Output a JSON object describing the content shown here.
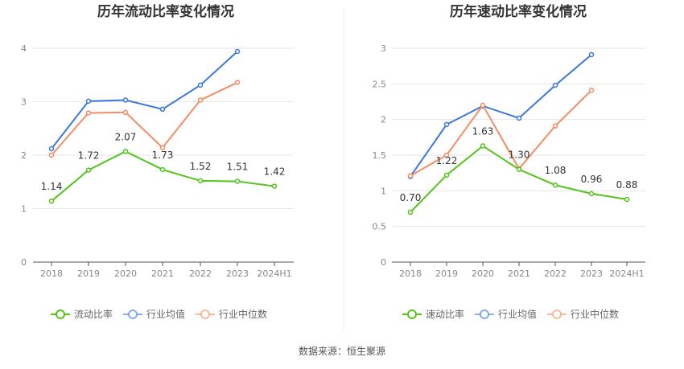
{
  "chart_data": [
    {
      "type": "line",
      "title": "历年流动比率变化情况",
      "categories": [
        "2018",
        "2019",
        "2020",
        "2021",
        "2022",
        "2023",
        "2024H1"
      ],
      "ylim": [
        0,
        4
      ],
      "yticks": [
        "0",
        "1",
        "2",
        "3",
        "4"
      ],
      "grid": true,
      "legend_position": "bottom",
      "series": [
        {
          "name": "流动比率",
          "color": "#52c41a",
          "values": [
            1.14,
            1.72,
            2.07,
            1.73,
            1.52,
            1.51,
            1.42
          ],
          "labels": [
            "1.14",
            "1.72",
            "2.07",
            "1.73",
            "1.52",
            "1.51",
            "1.42"
          ]
        },
        {
          "name": "行业均值",
          "color": "#3a78e0",
          "values": [
            2.12,
            3.01,
            3.03,
            2.86,
            3.31,
            3.94,
            null
          ]
        },
        {
          "name": "行业中位数",
          "color": "#f58c63",
          "values": [
            2.0,
            2.79,
            2.8,
            2.14,
            3.03,
            3.36,
            null
          ]
        }
      ]
    },
    {
      "type": "line",
      "title": "历年速动比率变化情况",
      "categories": [
        "2018",
        "2019",
        "2020",
        "2021",
        "2022",
        "2023",
        "2024H1"
      ],
      "ylim": [
        0,
        3
      ],
      "yticks": [
        "0",
        "0.5",
        "1",
        "1.5",
        "2",
        "2.5",
        "3"
      ],
      "grid": true,
      "legend_position": "bottom",
      "series": [
        {
          "name": "速动比率",
          "color": "#52c41a",
          "values": [
            0.7,
            1.22,
            1.63,
            1.3,
            1.08,
            0.96,
            0.88
          ],
          "labels": [
            "0.70",
            "1.22",
            "1.63",
            "1.30",
            "1.08",
            "0.96",
            "0.88"
          ]
        },
        {
          "name": "行业均值",
          "color": "#3a78e0",
          "values": [
            1.2,
            1.93,
            2.19,
            2.02,
            2.48,
            2.91,
            null
          ]
        },
        {
          "name": "行业中位数",
          "color": "#f58c63",
          "values": [
            1.21,
            1.5,
            2.2,
            1.31,
            1.91,
            2.41,
            null
          ]
        }
      ]
    }
  ],
  "footer": {
    "source": "数据来源：恒生聚源"
  }
}
